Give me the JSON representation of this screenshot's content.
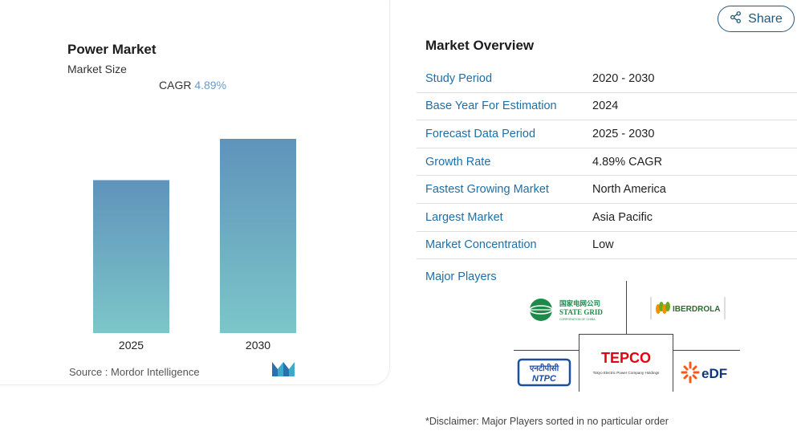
{
  "chart": {
    "title": "Power Market",
    "subtitle": "Market Size",
    "cagr_label": "CAGR",
    "cagr_value": "4.89%",
    "source": "Source :  Mordor Intelligence",
    "bar_color_top": "#5f93bb",
    "bar_color_bottom": "#7cc6c9"
  },
  "chart_data": {
    "type": "bar",
    "categories": [
      "2025",
      "2030"
    ],
    "values": [
      1.0,
      1.27
    ],
    "title": "Power Market",
    "subtitle": "Market Size",
    "xlabel": "",
    "ylabel": "",
    "grid": false,
    "annotation": "CAGR 4.89%"
  },
  "share": {
    "label": "Share",
    "icon": "share-icon"
  },
  "overview": {
    "title": "Market Overview",
    "rows": [
      {
        "key": "Study Period",
        "value": "2020 - 2030"
      },
      {
        "key": "Base Year For Estimation",
        "value": "2024"
      },
      {
        "key": "Forecast Data Period",
        "value": "2025 - 2030"
      },
      {
        "key": "Growth Rate",
        "value": "4.89% CAGR"
      },
      {
        "key": "Fastest Growing Market",
        "value": "North America"
      },
      {
        "key": "Largest Market",
        "value": "Asia Pacific"
      },
      {
        "key": "Market Concentration",
        "value": "Low"
      }
    ]
  },
  "major_players": {
    "title": "Major Players",
    "logos": [
      {
        "name": "State Grid",
        "text_cn": "国家电网公司",
        "text": "STATE GRID",
        "sub": "CORPORATION OF CHINA"
      },
      {
        "name": "Iberdrola",
        "text": "IBERDROLA"
      },
      {
        "name": "NTPC",
        "text_hi": "एनटीपीसी",
        "text": "NTPC"
      },
      {
        "name": "TEPCO",
        "text": "TEPCO",
        "sub": "Tokyo Electric Power Company Holdings"
      },
      {
        "name": "EDF",
        "text": "eDF"
      }
    ]
  },
  "disclaimer": "*Disclaimer: Major Players sorted in no particular order"
}
